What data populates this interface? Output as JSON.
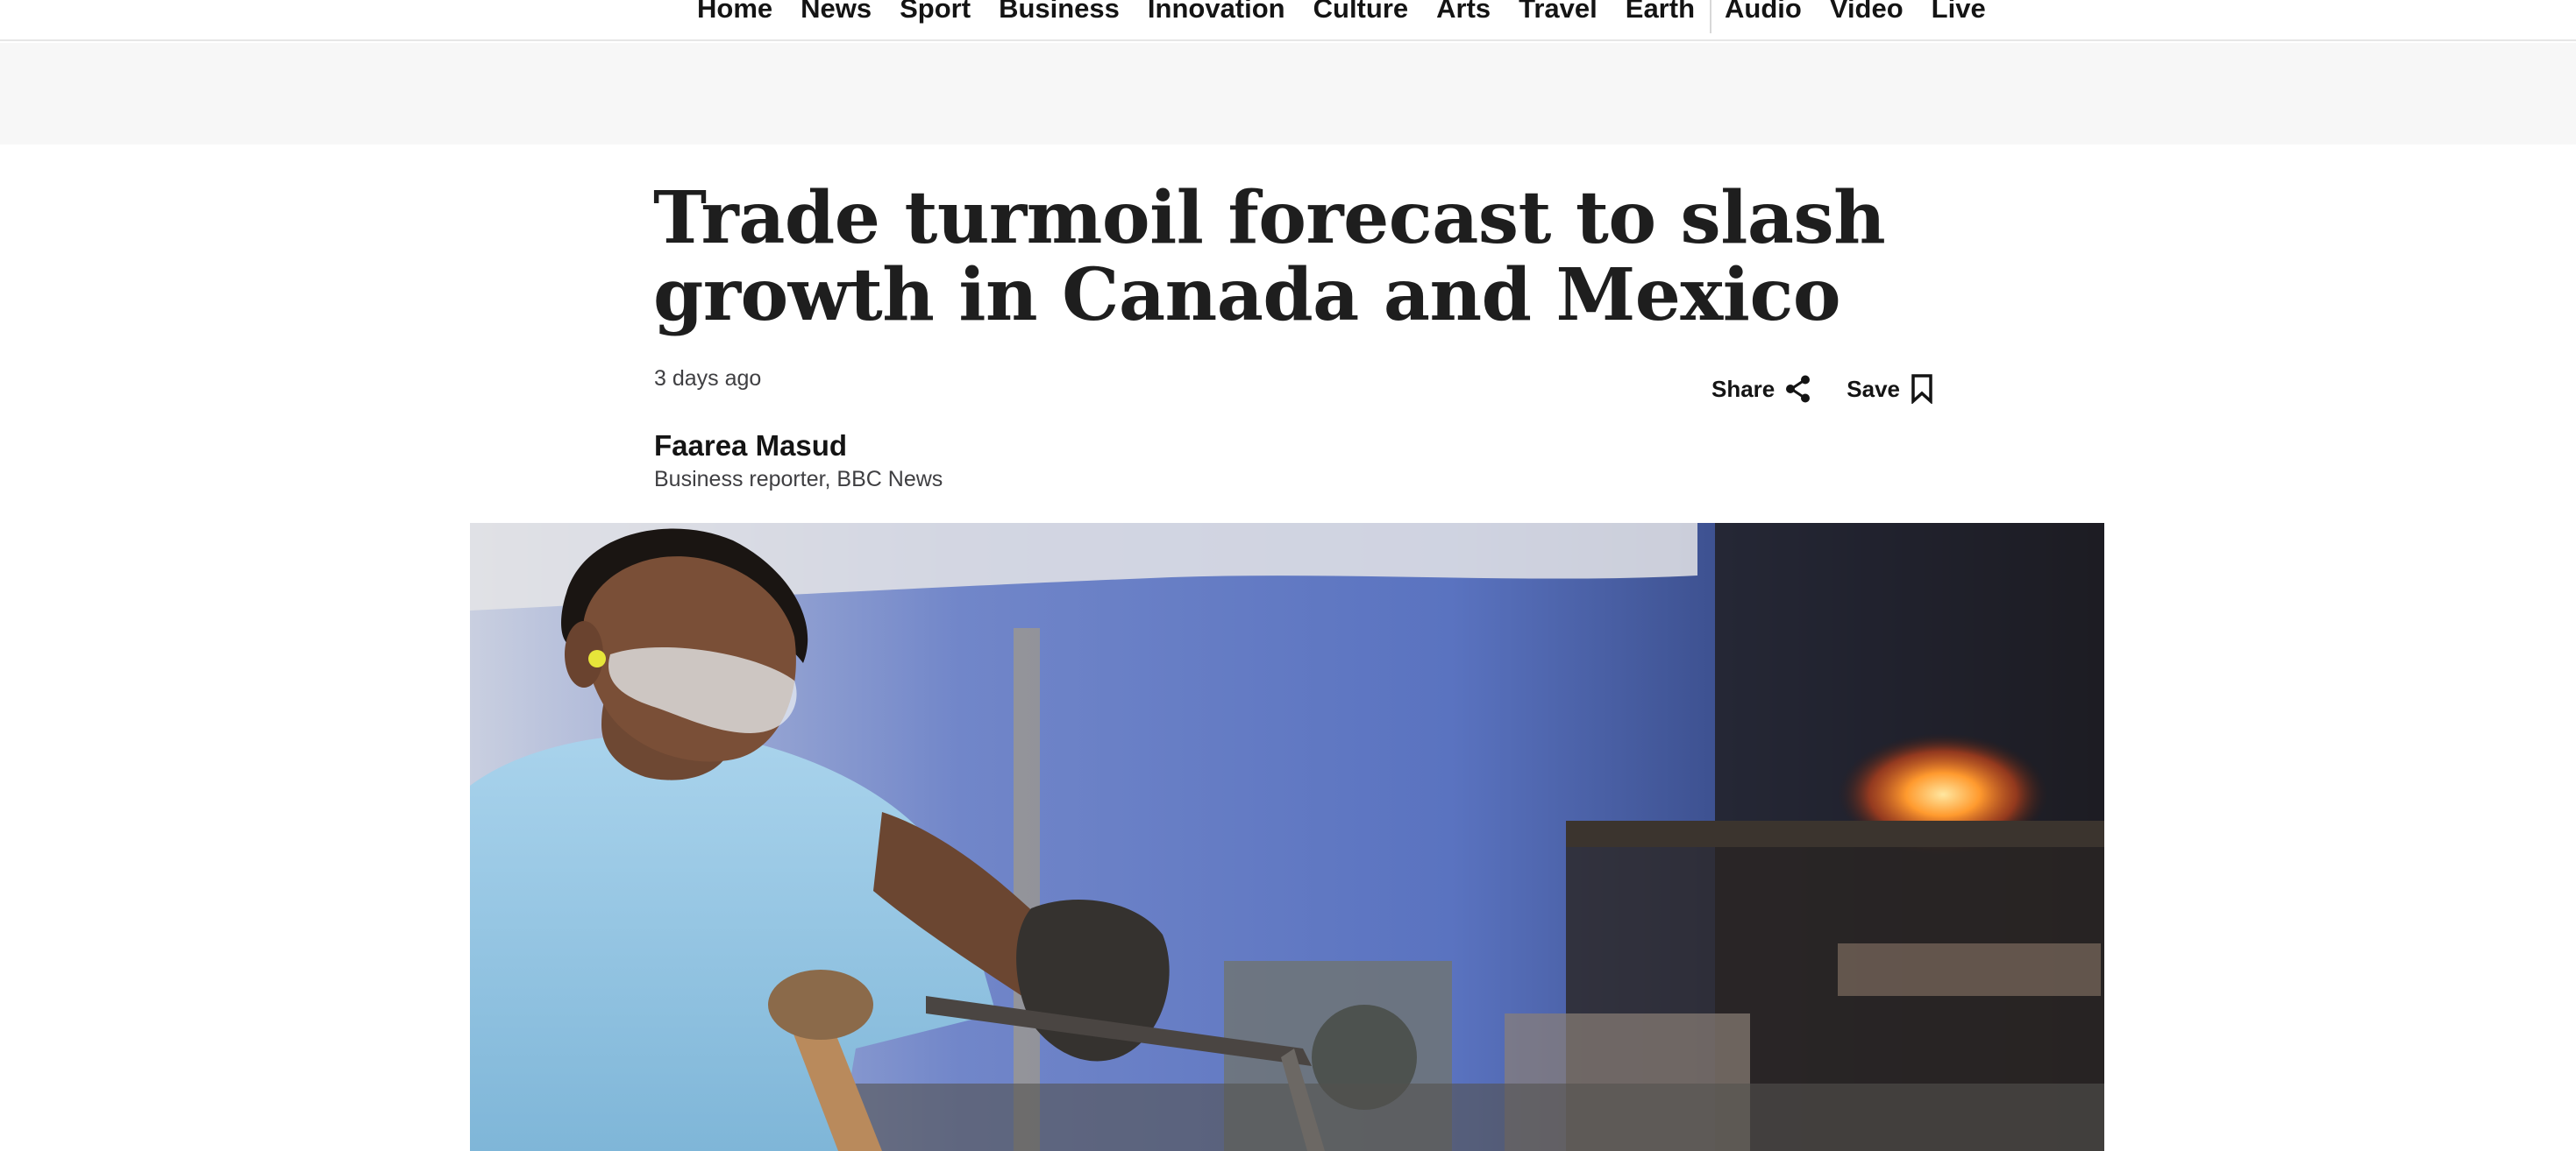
{
  "nav": {
    "items": [
      "Home",
      "News",
      "Sport",
      "Business",
      "Innovation",
      "Culture",
      "Arts",
      "Travel",
      "Earth"
    ],
    "items_secondary": [
      "Audio",
      "Video",
      "Live"
    ]
  },
  "article": {
    "headline": "Trade turmoil forecast to slash growth in Canada and Mexico",
    "timestamp": "3 days ago",
    "author": "Faarea Masud",
    "author_role": "Business reporter, BBC News"
  },
  "actions": {
    "share_label": "Share",
    "save_label": "Save"
  },
  "icons": {
    "share": "share-icon",
    "save": "bookmark-icon"
  },
  "colors": {
    "text": "#141414",
    "ad_band": "#f7f7f7",
    "nav_border": "#e6e6e6"
  }
}
